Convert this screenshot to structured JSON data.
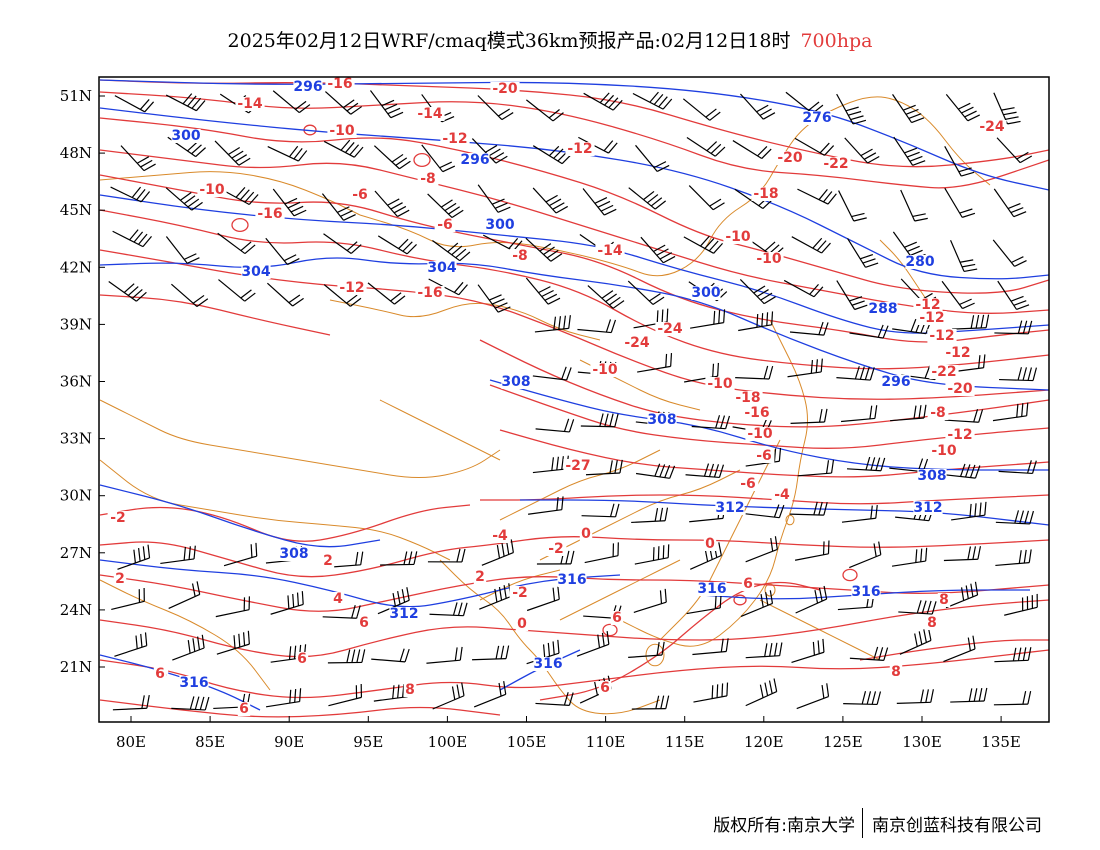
{
  "title": {
    "main": "2025年02月12日WRF/cmaq模式36km预报产品:02月12日18时",
    "level": "700hpa"
  },
  "colors": {
    "temperature": "#e23b3b",
    "height": "#1f3fe0",
    "border": "#d98a2b",
    "wind": "#000000"
  },
  "map": {
    "lon_ticks": [
      "80E",
      "85E",
      "90E",
      "95E",
      "100E",
      "105E",
      "110E",
      "115E",
      "120E",
      "125E",
      "130E",
      "135E"
    ],
    "lat_ticks": [
      "51N",
      "48N",
      "45N",
      "42N",
      "39N",
      "36N",
      "33N",
      "30N",
      "27N",
      "24N",
      "21N"
    ],
    "temperature_labels": [
      "-16",
      "-14",
      "-14",
      "-20",
      "-10",
      "-12",
      "-12",
      "-8",
      "-6",
      "-16",
      "-20",
      "-22",
      "-24",
      "-18",
      "-10",
      "-6",
      "-8",
      "-10",
      "-14",
      "-10",
      "-12",
      "-16",
      "-24",
      "-24",
      "-10",
      "-10",
      "-12",
      "-12",
      "-12",
      "-12",
      "-22",
      "-20",
      "-18",
      "-16",
      "-10",
      "-8",
      "-12",
      "-10",
      "-6",
      "-6",
      "-4",
      "-27",
      "-4",
      "-2",
      "0",
      "0",
      "-2",
      "-2",
      "0",
      "2",
      "2",
      "2",
      "2",
      "6",
      "6",
      "4",
      "4",
      "6",
      "6",
      "6",
      "6",
      "6",
      "8",
      "8",
      "8",
      "4",
      "6",
      "8"
    ],
    "height_labels": [
      "296",
      "300",
      "276",
      "296",
      "300",
      "304",
      "304",
      "300",
      "280",
      "288",
      "296",
      "308",
      "308",
      "308",
      "312",
      "308",
      "312",
      "316",
      "312",
      "316",
      "316",
      "316",
      "316"
    ]
  },
  "footer": {
    "left": "版权所有:南京大学",
    "right": "南京创蓝科技有限公司"
  }
}
